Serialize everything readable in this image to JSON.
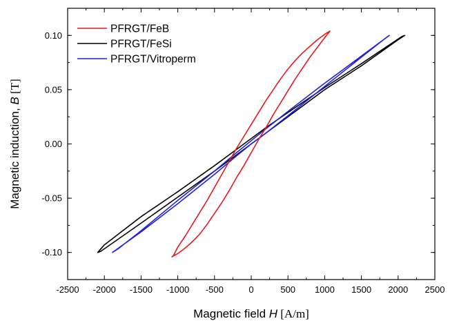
{
  "chart_data": {
    "type": "line",
    "title": "",
    "xlabel": {
      "text": "Magnetic field ",
      "var": "H",
      "unit": "[A/m]"
    },
    "ylabel": {
      "text": "Magnetic induction, ",
      "var": "B",
      "unit": "[T]"
    },
    "xlim": [
      -2500,
      2500
    ],
    "ylim": [
      -0.125,
      0.125
    ],
    "xticks": [
      -2500,
      -2000,
      -1500,
      -1000,
      -500,
      0,
      500,
      1000,
      1500,
      2000,
      2500
    ],
    "xtick_labels": [
      "-2500",
      "-2000",
      "-1500",
      "-1000",
      "-500",
      "0",
      "500",
      "1000",
      "1500",
      "2000",
      "2500"
    ],
    "yticks": [
      -0.1,
      -0.05,
      0.0,
      0.05,
      0.1
    ],
    "ytick_labels": [
      "-0.10",
      "-0.05",
      "0.00",
      "0.05",
      "0.10"
    ],
    "grid": false,
    "legend_position": "top-left",
    "series": [
      {
        "name": "PFRGT/FeB",
        "color": "#e8181c",
        "loop": true,
        "points": [
          [
            -1080,
            -0.104
          ],
          [
            -1060,
            -0.103
          ],
          [
            -1000,
            -0.095
          ],
          [
            -900,
            -0.085
          ],
          [
            -800,
            -0.074
          ],
          [
            -700,
            -0.063
          ],
          [
            -600,
            -0.052
          ],
          [
            -500,
            -0.04
          ],
          [
            -400,
            -0.028
          ],
          [
            -300,
            -0.016
          ],
          [
            -200,
            -0.004
          ],
          [
            -100,
            0.007
          ],
          [
            0,
            0.018
          ],
          [
            100,
            0.029
          ],
          [
            200,
            0.04
          ],
          [
            300,
            0.05
          ],
          [
            400,
            0.06
          ],
          [
            500,
            0.069
          ],
          [
            600,
            0.077
          ],
          [
            700,
            0.084
          ],
          [
            800,
            0.09
          ],
          [
            900,
            0.096
          ],
          [
            1000,
            0.101
          ],
          [
            1070,
            0.104
          ],
          [
            1060,
            0.103
          ],
          [
            1000,
            0.098
          ],
          [
            900,
            0.089
          ],
          [
            800,
            0.08
          ],
          [
            700,
            0.07
          ],
          [
            600,
            0.06
          ],
          [
            500,
            0.049
          ],
          [
            400,
            0.038
          ],
          [
            300,
            0.027
          ],
          [
            200,
            0.015
          ],
          [
            100,
            0.004
          ],
          [
            0,
            -0.008
          ],
          [
            -100,
            -0.02
          ],
          [
            -200,
            -0.031
          ],
          [
            -300,
            -0.043
          ],
          [
            -400,
            -0.054
          ],
          [
            -500,
            -0.064
          ],
          [
            -600,
            -0.074
          ],
          [
            -700,
            -0.083
          ],
          [
            -800,
            -0.09
          ],
          [
            -900,
            -0.096
          ],
          [
            -1000,
            -0.101
          ],
          [
            -1080,
            -0.104
          ]
        ]
      },
      {
        "name": "PFRGT/FeSi",
        "color": "#000000",
        "loop": true,
        "points": [
          [
            -2090,
            -0.1
          ],
          [
            -2050,
            -0.099
          ],
          [
            -1500,
            -0.073
          ],
          [
            -1000,
            -0.049
          ],
          [
            -500,
            -0.025
          ],
          [
            -200,
            -0.01
          ],
          [
            0,
            0.0
          ],
          [
            200,
            0.01
          ],
          [
            500,
            0.025
          ],
          [
            1000,
            0.05
          ],
          [
            1500,
            0.072
          ],
          [
            2000,
            0.096
          ],
          [
            2090,
            0.1
          ],
          [
            2050,
            0.099
          ],
          [
            1500,
            0.074
          ],
          [
            1000,
            0.052
          ],
          [
            500,
            0.029
          ],
          [
            200,
            0.015
          ],
          [
            0,
            0.005
          ],
          [
            -200,
            -0.005
          ],
          [
            -500,
            -0.02
          ],
          [
            -1000,
            -0.044
          ],
          [
            -1500,
            -0.067
          ],
          [
            -2000,
            -0.093
          ],
          [
            -2090,
            -0.1
          ]
        ]
      },
      {
        "name": "PFRGT/Vitroperm",
        "color": "#1f1fe0",
        "loop": true,
        "points": [
          [
            -1890,
            -0.1
          ],
          [
            -1800,
            -0.096
          ],
          [
            -1500,
            -0.08
          ],
          [
            -1000,
            -0.052
          ],
          [
            -500,
            -0.025
          ],
          [
            -200,
            -0.008
          ],
          [
            0,
            0.003
          ],
          [
            200,
            0.014
          ],
          [
            500,
            0.03
          ],
          [
            1000,
            0.056
          ],
          [
            1500,
            0.081
          ],
          [
            1880,
            0.1
          ],
          [
            1800,
            0.096
          ],
          [
            1500,
            0.08
          ],
          [
            1000,
            0.053
          ],
          [
            500,
            0.026
          ],
          [
            200,
            0.01
          ],
          [
            0,
            0.0
          ],
          [
            -200,
            -0.011
          ],
          [
            -500,
            -0.028
          ],
          [
            -1000,
            -0.055
          ],
          [
            -1500,
            -0.081
          ],
          [
            -1890,
            -0.1
          ]
        ]
      }
    ]
  }
}
